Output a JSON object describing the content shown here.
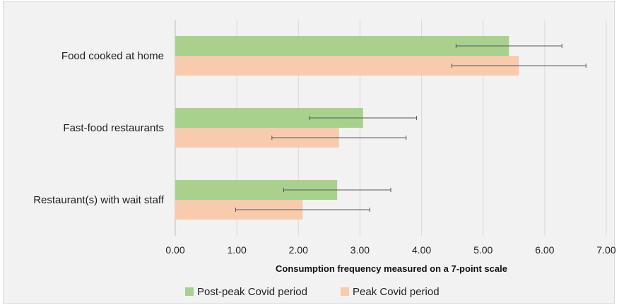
{
  "chart_data": {
    "type": "bar",
    "orientation": "horizontal",
    "categories": [
      "Food cooked at home",
      "Fast-food restaurants",
      "Restaurant(s) with wait staff"
    ],
    "series": [
      {
        "name": "Post-peak Covid period",
        "color": "#a9d18e",
        "values": [
          5.42,
          3.05,
          2.63
        ],
        "error": [
          0.86,
          0.87,
          0.87
        ]
      },
      {
        "name": "Peak Covid period",
        "color": "#f8cbad",
        "values": [
          5.58,
          2.66,
          2.07
        ],
        "error": [
          1.09,
          1.09,
          1.09
        ]
      }
    ],
    "x_ticks": [
      "0.00",
      "1.00",
      "2.00",
      "3.00",
      "4.00",
      "5.00",
      "6.00",
      "7.00"
    ],
    "xlim": [
      0,
      7
    ],
    "xlabel": "Consumption frequency measured on a 7-point scale",
    "grid": true,
    "legend_position": "bottom"
  }
}
